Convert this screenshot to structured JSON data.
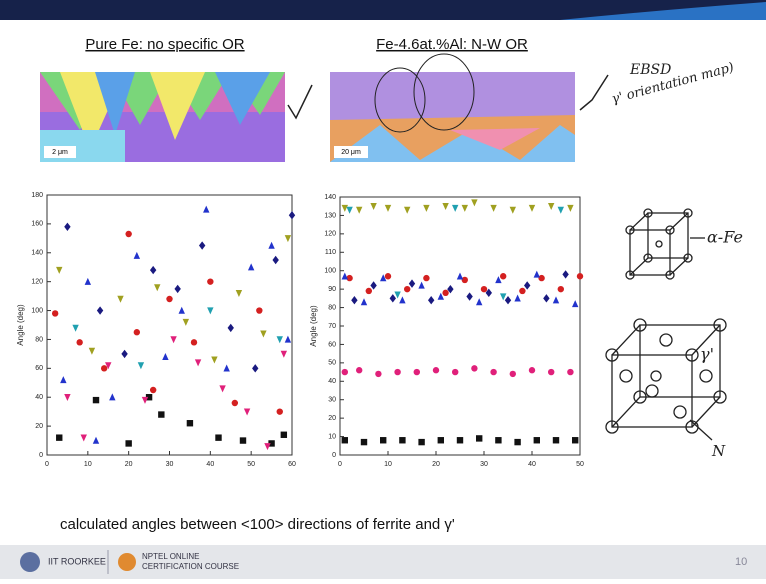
{
  "panels": [
    {
      "title": "Pure Fe: no specific OR",
      "scale_label": "2 μm"
    },
    {
      "title": "Fe-4.6at.%Al: N-W OR",
      "scale_label": "20 μm"
    }
  ],
  "annotations": {
    "ebsd": "EBSD",
    "map_note": "γ' orientation map)",
    "alpha": "α-Fe",
    "gamma": "γ'",
    "n_atom": "N"
  },
  "chart_data": [
    {
      "type": "scatter",
      "y_label": "Angle (deg)",
      "xlim": [
        0,
        60
      ],
      "xticks": [
        0,
        10,
        20,
        30,
        40,
        50,
        60
      ],
      "ylim": [
        0,
        180
      ],
      "yticks": [
        0,
        20,
        40,
        60,
        80,
        100,
        120,
        140,
        160,
        180
      ],
      "series": [
        {
          "color": "#111111",
          "marker": "square",
          "x": [
            3,
            12,
            20,
            28,
            35,
            42,
            48,
            55,
            58,
            25
          ],
          "values": [
            12,
            38,
            8,
            28,
            22,
            12,
            10,
            8,
            14,
            40
          ]
        },
        {
          "color": "#d42020",
          "marker": "circle",
          "x": [
            2,
            8,
            14,
            20,
            26,
            30,
            36,
            40,
            46,
            52,
            57,
            22
          ],
          "values": [
            98,
            78,
            60,
            153,
            45,
            108,
            78,
            120,
            36,
            100,
            30,
            85
          ]
        },
        {
          "color": "#2233cc",
          "marker": "triangle",
          "x": [
            4,
            10,
            16,
            22,
            29,
            33,
            39,
            44,
            50,
            55,
            59,
            12
          ],
          "values": [
            52,
            120,
            40,
            138,
            68,
            100,
            170,
            60,
            130,
            145,
            80,
            10
          ]
        },
        {
          "color": "#e0207a",
          "marker": "triangle-down",
          "x": [
            5,
            9,
            15,
            24,
            31,
            37,
            43,
            49,
            54,
            58
          ],
          "values": [
            40,
            12,
            62,
            38,
            80,
            64,
            46,
            30,
            6,
            70
          ]
        },
        {
          "color": "#a0a020",
          "marker": "triangle-down",
          "x": [
            3,
            11,
            18,
            27,
            34,
            41,
            47,
            53,
            59
          ],
          "values": [
            128,
            72,
            108,
            116,
            92,
            66,
            112,
            84,
            150
          ]
        },
        {
          "color": "#1a1a80",
          "marker": "diamond",
          "x": [
            5,
            13,
            19,
            26,
            32,
            38,
            45,
            51,
            56,
            60
          ],
          "values": [
            158,
            100,
            70,
            128,
            115,
            145,
            88,
            60,
            135,
            166
          ]
        },
        {
          "color": "#20a0b0",
          "marker": "triangle-down",
          "x": [
            7,
            23,
            40,
            57
          ],
          "values": [
            88,
            62,
            100,
            80
          ]
        }
      ]
    },
    {
      "type": "scatter",
      "y_label": "Angle (deg)",
      "xlim": [
        0,
        50
      ],
      "xticks": [
        0,
        10,
        20,
        30,
        40,
        50
      ],
      "ylim": [
        0,
        140
      ],
      "yticks": [
        0,
        10,
        20,
        30,
        40,
        50,
        60,
        70,
        80,
        90,
        100,
        110,
        120,
        130,
        140
      ],
      "series": [
        {
          "color": "#111111",
          "marker": "square",
          "x": [
            1,
            5,
            9,
            13,
            17,
            21,
            25,
            29,
            33,
            37,
            41,
            45,
            49
          ],
          "values": [
            8,
            7,
            8,
            8,
            7,
            8,
            8,
            9,
            8,
            7,
            8,
            8,
            8
          ]
        },
        {
          "color": "#e0207a",
          "marker": "circle",
          "x": [
            1,
            4,
            8,
            12,
            16,
            20,
            24,
            28,
            32,
            36,
            40,
            44,
            48
          ],
          "values": [
            45,
            46,
            44,
            45,
            45,
            46,
            45,
            47,
            45,
            44,
            46,
            45,
            45
          ]
        },
        {
          "color": "#d42020",
          "marker": "circle",
          "x": [
            2,
            6,
            10,
            14,
            18,
            22,
            26,
            30,
            34,
            38,
            42,
            46,
            50
          ],
          "values": [
            96,
            89,
            97,
            90,
            96,
            88,
            95,
            90,
            97,
            89,
            96,
            90,
            97
          ]
        },
        {
          "color": "#2233cc",
          "marker": "triangle",
          "x": [
            1,
            5,
            9,
            13,
            17,
            21,
            25,
            29,
            33,
            37,
            41,
            45,
            49
          ],
          "values": [
            97,
            83,
            96,
            84,
            92,
            86,
            97,
            83,
            95,
            85,
            98,
            84,
            82
          ]
        },
        {
          "color": "#1a1a80",
          "marker": "diamond",
          "x": [
            3,
            7,
            11,
            15,
            19,
            23,
            27,
            31,
            35,
            39,
            43,
            47
          ],
          "values": [
            84,
            92,
            85,
            93,
            84,
            90,
            86,
            88,
            84,
            92,
            85,
            98
          ]
        },
        {
          "color": "#a0a020",
          "marker": "triangle-down",
          "x": [
            1,
            4,
            7,
            10,
            14,
            18,
            22,
            26,
            28,
            32,
            36,
            40,
            44,
            48
          ],
          "values": [
            134,
            133,
            135,
            134,
            133,
            134,
            135,
            134,
            137,
            134,
            133,
            134,
            135,
            134
          ]
        },
        {
          "color": "#20a0b0",
          "marker": "triangle-down",
          "x": [
            2,
            12,
            24,
            34,
            46
          ],
          "values": [
            133,
            87,
            134,
            86,
            133
          ]
        }
      ]
    }
  ],
  "caption": "calculated angles between <100> directions of ferrite and γ'",
  "footer": {
    "institute": "IIT ROORKEE",
    "course_line1": "NPTEL ONLINE",
    "course_line2": "CERTIFICATION COURSE",
    "page": "10"
  }
}
